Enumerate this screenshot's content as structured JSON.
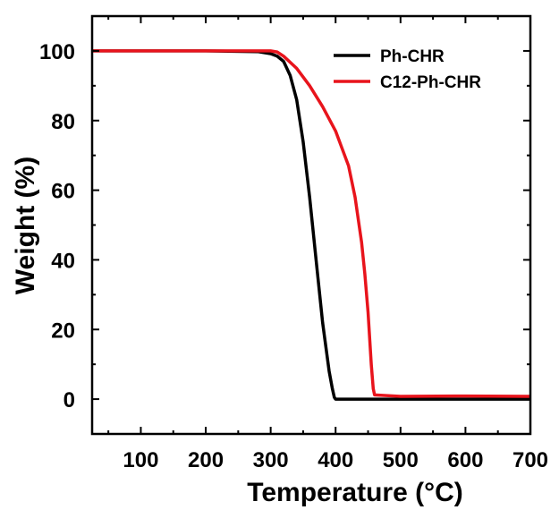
{
  "chart_data": {
    "type": "line",
    "xlabel": "Temperature (°C)",
    "ylabel": "Weight (%)",
    "xlim": [
      25,
      700
    ],
    "ylim": [
      -10,
      110
    ],
    "xticks": [
      100,
      200,
      300,
      400,
      500,
      600,
      700
    ],
    "yticks": [
      0,
      20,
      40,
      60,
      80,
      100
    ],
    "xtick_labels": [
      "100",
      "200",
      "300",
      "400",
      "500",
      "600",
      "700"
    ],
    "ytick_labels": [
      "0",
      "20",
      "40",
      "60",
      "80",
      "100"
    ],
    "grid": false,
    "legend_position": "top-right",
    "series": [
      {
        "name": "Ph-CHR",
        "color": "#000000",
        "points": [
          [
            25,
            100
          ],
          [
            100,
            100
          ],
          [
            200,
            100
          ],
          [
            280,
            99.8
          ],
          [
            300,
            99.2
          ],
          [
            310,
            98.5
          ],
          [
            320,
            97
          ],
          [
            330,
            93
          ],
          [
            340,
            86
          ],
          [
            350,
            74
          ],
          [
            360,
            58
          ],
          [
            370,
            40
          ],
          [
            380,
            22
          ],
          [
            390,
            8
          ],
          [
            395,
            3
          ],
          [
            398,
            0.5
          ],
          [
            400,
            0
          ],
          [
            500,
            0
          ],
          [
            600,
            0
          ],
          [
            700,
            0
          ]
        ]
      },
      {
        "name": "C12-Ph-CHR",
        "color": "#e8141c",
        "points": [
          [
            25,
            100
          ],
          [
            100,
            100
          ],
          [
            200,
            100
          ],
          [
            300,
            100
          ],
          [
            310,
            99.7
          ],
          [
            320,
            98.5
          ],
          [
            340,
            95
          ],
          [
            360,
            90
          ],
          [
            380,
            84
          ],
          [
            400,
            77
          ],
          [
            420,
            67
          ],
          [
            430,
            58
          ],
          [
            440,
            45
          ],
          [
            445,
            36
          ],
          [
            450,
            25
          ],
          [
            455,
            10
          ],
          [
            458,
            3
          ],
          [
            460,
            1.2
          ],
          [
            500,
            0.8
          ],
          [
            600,
            0.9
          ],
          [
            700,
            0.8
          ]
        ]
      }
    ]
  }
}
